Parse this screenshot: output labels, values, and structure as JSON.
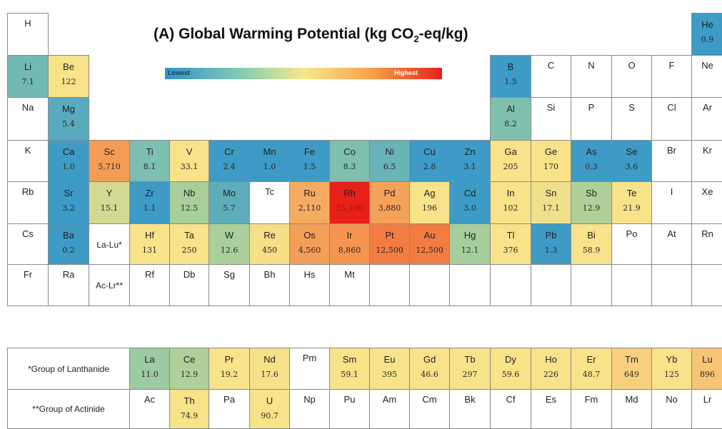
{
  "chart_data": {
    "type": "heatmap",
    "title": "(A) Global Warming Potential (kg CO",
    "title_subscript": "2",
    "title_suffix": "-eq/kg)",
    "legend": {
      "low_label": "Lowest",
      "high_label": "Highest"
    },
    "main_table": [
      {
        "symbol": "H",
        "row": 1,
        "col": 1
      },
      {
        "symbol": "He",
        "value": "0.9",
        "row": 1,
        "col": 18
      },
      {
        "symbol": "Li",
        "value": "7.1",
        "row": 2,
        "col": 1
      },
      {
        "symbol": "Be",
        "value": "122",
        "row": 2,
        "col": 2
      },
      {
        "symbol": "B",
        "value": "1.5",
        "row": 2,
        "col": 13
      },
      {
        "symbol": "C",
        "row": 2,
        "col": 14
      },
      {
        "symbol": "N",
        "row": 2,
        "col": 15
      },
      {
        "symbol": "O",
        "row": 2,
        "col": 16
      },
      {
        "symbol": "F",
        "row": 2,
        "col": 17
      },
      {
        "symbol": "Ne",
        "row": 2,
        "col": 18
      },
      {
        "symbol": "Na",
        "row": 3,
        "col": 1
      },
      {
        "symbol": "Mg",
        "value": "5.4",
        "row": 3,
        "col": 2
      },
      {
        "symbol": "Al",
        "value": "8.2",
        "row": 3,
        "col": 13
      },
      {
        "symbol": "Si",
        "row": 3,
        "col": 14
      },
      {
        "symbol": "P",
        "row": 3,
        "col": 15
      },
      {
        "symbol": "S",
        "row": 3,
        "col": 16
      },
      {
        "symbol": "Cl",
        "row": 3,
        "col": 17
      },
      {
        "symbol": "Ar",
        "row": 3,
        "col": 18
      },
      {
        "symbol": "K",
        "row": 4,
        "col": 1
      },
      {
        "symbol": "Ca",
        "value": "1.0",
        "row": 4,
        "col": 2
      },
      {
        "symbol": "Sc",
        "value": "5,710",
        "row": 4,
        "col": 3
      },
      {
        "symbol": "Ti",
        "value": "8.1",
        "row": 4,
        "col": 4
      },
      {
        "symbol": "V",
        "value": "33.1",
        "row": 4,
        "col": 5
      },
      {
        "symbol": "Cr",
        "value": "2.4",
        "row": 4,
        "col": 6
      },
      {
        "symbol": "Mn",
        "value": "1.0",
        "row": 4,
        "col": 7
      },
      {
        "symbol": "Fe",
        "value": "1.5",
        "row": 4,
        "col": 8
      },
      {
        "symbol": "Co",
        "value": "8.3",
        "row": 4,
        "col": 9
      },
      {
        "symbol": "Ni",
        "value": "6.5",
        "row": 4,
        "col": 10
      },
      {
        "symbol": "Cu",
        "value": "2.8",
        "row": 4,
        "col": 11
      },
      {
        "symbol": "Zn",
        "value": "3.1",
        "row": 4,
        "col": 12
      },
      {
        "symbol": "Ga",
        "value": "205",
        "row": 4,
        "col": 13
      },
      {
        "symbol": "Ge",
        "value": "170",
        "row": 4,
        "col": 14
      },
      {
        "symbol": "As",
        "value": "0.3",
        "row": 4,
        "col": 15
      },
      {
        "symbol": "Se",
        "value": "3.6",
        "row": 4,
        "col": 16
      },
      {
        "symbol": "Br",
        "row": 4,
        "col": 17
      },
      {
        "symbol": "Kr",
        "row": 4,
        "col": 18
      },
      {
        "symbol": "Rb",
        "row": 5,
        "col": 1
      },
      {
        "symbol": "Sr",
        "value": "3.2",
        "row": 5,
        "col": 2
      },
      {
        "symbol": "Y",
        "value": "15.1",
        "row": 5,
        "col": 3
      },
      {
        "symbol": "Zr",
        "value": "1.1",
        "row": 5,
        "col": 4
      },
      {
        "symbol": "Nb",
        "value": "12.5",
        "row": 5,
        "col": 5
      },
      {
        "symbol": "Mo",
        "value": "5.7",
        "row": 5,
        "col": 6
      },
      {
        "symbol": "Tc",
        "row": 5,
        "col": 7
      },
      {
        "symbol": "Ru",
        "value": "2,110",
        "row": 5,
        "col": 8
      },
      {
        "symbol": "Rh",
        "value": "35,100",
        "row": 5,
        "col": 9
      },
      {
        "symbol": "Pd",
        "value": "3,880",
        "row": 5,
        "col": 10
      },
      {
        "symbol": "Ag",
        "value": "196",
        "row": 5,
        "col": 11
      },
      {
        "symbol": "Cd",
        "value": "3.0",
        "row": 5,
        "col": 12
      },
      {
        "symbol": "In",
        "value": "102",
        "row": 5,
        "col": 13
      },
      {
        "symbol": "Sn",
        "value": "17.1",
        "row": 5,
        "col": 14
      },
      {
        "symbol": "Sb",
        "value": "12.9",
        "row": 5,
        "col": 15
      },
      {
        "symbol": "Te",
        "value": "21.9",
        "row": 5,
        "col": 16
      },
      {
        "symbol": "I",
        "row": 5,
        "col": 17
      },
      {
        "symbol": "Xe",
        "row": 5,
        "col": 18
      },
      {
        "symbol": "Cs",
        "row": 6,
        "col": 1
      },
      {
        "symbol": "Ba",
        "value": "0.2",
        "row": 6,
        "col": 2
      },
      {
        "symbol": "La-Lu*",
        "row": 6,
        "col": 3
      },
      {
        "symbol": "Hf",
        "value": "131",
        "row": 6,
        "col": 4
      },
      {
        "symbol": "Ta",
        "value": "250",
        "row": 6,
        "col": 5
      },
      {
        "symbol": "W",
        "value": "12.6",
        "row": 6,
        "col": 6
      },
      {
        "symbol": "Re",
        "value": "450",
        "row": 6,
        "col": 7
      },
      {
        "symbol": "Os",
        "value": "4,560",
        "row": 6,
        "col": 8
      },
      {
        "symbol": "Ir",
        "value": "8,860",
        "row": 6,
        "col": 9
      },
      {
        "symbol": "Pt",
        "value": "12,500",
        "row": 6,
        "col": 10
      },
      {
        "symbol": "Au",
        "value": "12,500",
        "row": 6,
        "col": 11
      },
      {
        "symbol": "Hg",
        "value": "12.1",
        "row": 6,
        "col": 12
      },
      {
        "symbol": "Tl",
        "value": "376",
        "row": 6,
        "col": 13
      },
      {
        "symbol": "Pb",
        "value": "1.3",
        "row": 6,
        "col": 14
      },
      {
        "symbol": "Bi",
        "value": "58.9",
        "row": 6,
        "col": 15
      },
      {
        "symbol": "Po",
        "row": 6,
        "col": 16
      },
      {
        "symbol": "At",
        "row": 6,
        "col": 17
      },
      {
        "symbol": "Rn",
        "row": 6,
        "col": 18
      },
      {
        "symbol": "Fr",
        "row": 7,
        "col": 1
      },
      {
        "symbol": "Ra",
        "row": 7,
        "col": 2
      },
      {
        "symbol": "Ac-Lr**",
        "row": 7,
        "col": 3
      },
      {
        "symbol": "Rf",
        "row": 7,
        "col": 4
      },
      {
        "symbol": "Db",
        "row": 7,
        "col": 5
      },
      {
        "symbol": "Sg",
        "row": 7,
        "col": 6
      },
      {
        "symbol": "Bh",
        "row": 7,
        "col": 7
      },
      {
        "symbol": "Hs",
        "row": 7,
        "col": 8
      },
      {
        "symbol": "Mt",
        "row": 7,
        "col": 9
      },
      {
        "symbol": "",
        "row": 7,
        "col": 10
      },
      {
        "symbol": "",
        "row": 7,
        "col": 11
      },
      {
        "symbol": "",
        "row": 7,
        "col": 12
      },
      {
        "symbol": "",
        "row": 7,
        "col": 13
      },
      {
        "symbol": "",
        "row": 7,
        "col": 14
      },
      {
        "symbol": "",
        "row": 7,
        "col": 15
      },
      {
        "symbol": "",
        "row": 7,
        "col": 16
      },
      {
        "symbol": "",
        "row": 7,
        "col": 17
      },
      {
        "symbol": "",
        "row": 7,
        "col": 18
      }
    ],
    "lanthanides": {
      "label": "*Group of Lanthanide",
      "elements": [
        {
          "symbol": "La",
          "value": "11.0"
        },
        {
          "symbol": "Ce",
          "value": "12.9"
        },
        {
          "symbol": "Pr",
          "value": "19.2"
        },
        {
          "symbol": "Nd",
          "value": "17.6"
        },
        {
          "symbol": "Pm"
        },
        {
          "symbol": "Sm",
          "value": "59.1"
        },
        {
          "symbol": "Eu",
          "value": "395"
        },
        {
          "symbol": "Gd",
          "value": "46.6"
        },
        {
          "symbol": "Tb",
          "value": "297"
        },
        {
          "symbol": "Dy",
          "value": "59.6"
        },
        {
          "symbol": "Ho",
          "value": "226"
        },
        {
          "symbol": "Er",
          "value": "48.7"
        },
        {
          "symbol": "Tm",
          "value": "649"
        },
        {
          "symbol": "Yb",
          "value": "125"
        },
        {
          "symbol": "Lu",
          "value": "896"
        }
      ]
    },
    "actinides": {
      "label": "**Group of Actinide",
      "elements": [
        {
          "symbol": "Ac"
        },
        {
          "symbol": "Th",
          "value": "74.9"
        },
        {
          "symbol": "Pa"
        },
        {
          "symbol": "U",
          "value": "90.7"
        },
        {
          "symbol": "Np"
        },
        {
          "symbol": "Pu"
        },
        {
          "symbol": "Am"
        },
        {
          "symbol": "Cm"
        },
        {
          "symbol": "Bk"
        },
        {
          "symbol": "Cf"
        },
        {
          "symbol": "Es"
        },
        {
          "symbol": "Fm"
        },
        {
          "symbol": "Md"
        },
        {
          "symbol": "No"
        },
        {
          "symbol": "Lr"
        }
      ]
    }
  },
  "colors": {
    "blue": "#3d9bc6",
    "teal": "#87c3ad",
    "green": "#a9cf9a",
    "yellow": "#f8e28a",
    "orange": "#f5b066",
    "deep_orange": "#f3934d",
    "red": "#e8201a"
  }
}
